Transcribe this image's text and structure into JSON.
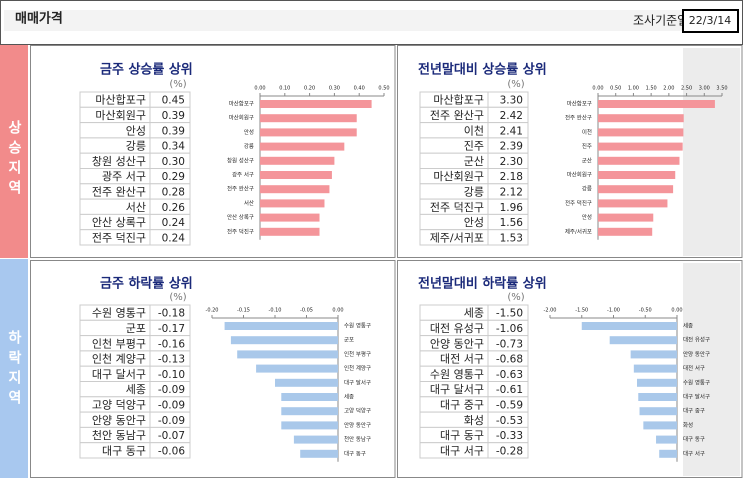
{
  "header": {
    "title": "매매가격",
    "date_label": "조사기준일",
    "date": "22/3/14"
  },
  "sections": [
    {
      "label": "상승지역",
      "panels": [
        {
          "title": "금주 상승률 상위",
          "unit": "(%)",
          "color": "#f4959a",
          "names": [
            "마산합포구",
            "마산회원구",
            "안성",
            "강릉",
            "창원 성산구",
            "광주 서구",
            "전주 완산구",
            "서산",
            "안산 상록구",
            "전주 덕진구"
          ],
          "values": [
            0.45,
            0.39,
            0.39,
            0.34,
            0.3,
            0.29,
            0.28,
            0.26,
            0.24,
            0.24
          ],
          "value_labels": [
            "0.45",
            "0.39",
            "0.39",
            "0.34",
            "0.30",
            "0.29",
            "0.28",
            "0.26",
            "0.24",
            "0.24"
          ],
          "xlim": [
            0,
            0.5
          ],
          "xticks": [
            {
              "value": 0,
              "label": "0.00"
            },
            {
              "value": 0.1,
              "label": "0.10"
            },
            {
              "value": 0.2,
              "label": "0.20"
            },
            {
              "value": 0.3,
              "label": "0.30"
            },
            {
              "value": 0.4,
              "label": "0.40"
            },
            {
              "value": 0.5,
              "label": "0.50"
            }
          ]
        },
        {
          "title": "전년말대비 상승률 상위",
          "unit": "(%)",
          "color": "#f4959a",
          "names": [
            "마산합포구",
            "전주 완산구",
            "이천",
            "진주",
            "군산",
            "마산회원구",
            "강릉",
            "전주 덕진구",
            "안성",
            "제주/서귀포"
          ],
          "values": [
            3.3,
            2.42,
            2.41,
            2.39,
            2.3,
            2.18,
            2.12,
            1.96,
            1.56,
            1.53
          ],
          "value_labels": [
            "3.30",
            "2.42",
            "2.41",
            "2.39",
            "2.30",
            "2.18",
            "2.12",
            "1.96",
            "1.56",
            "1.53"
          ],
          "xlim": [
            0,
            3.5
          ],
          "xticks": [
            {
              "value": 0,
              "label": "0.00"
            },
            {
              "value": 0.5,
              "label": "0.50"
            },
            {
              "value": 1,
              "label": "1.00"
            },
            {
              "value": 1.5,
              "label": "1.50"
            },
            {
              "value": 2,
              "label": "2.00"
            },
            {
              "value": 2.5,
              "label": "2.50"
            },
            {
              "value": 3,
              "label": "3.00"
            },
            {
              "value": 3.5,
              "label": "3.50"
            }
          ]
        }
      ]
    },
    {
      "label": "하락지역",
      "panels": [
        {
          "title": "금주 하락률 상위",
          "unit": "(%)",
          "color": "#a9c8ea",
          "names": [
            "수원 영통구",
            "군포",
            "인천 부평구",
            "인천 계양구",
            "대구 달서구",
            "세종",
            "고양 덕양구",
            "안양 동안구",
            "천안 동남구",
            "대구 동구"
          ],
          "values": [
            -0.18,
            -0.17,
            -0.16,
            -0.13,
            -0.1,
            -0.09,
            -0.09,
            -0.09,
            -0.07,
            -0.06
          ],
          "value_labels": [
            "-0.18",
            "-0.17",
            "-0.16",
            "-0.13",
            "-0.10",
            "-0.09",
            "-0.09",
            "-0.09",
            "-0.07",
            "-0.06"
          ],
          "xlim": [
            -0.2,
            0
          ],
          "xticks": [
            {
              "value": -0.2,
              "label": "-0.20"
            },
            {
              "value": -0.15,
              "label": "-0.15"
            },
            {
              "value": -0.1,
              "label": "-0.10"
            },
            {
              "value": -0.05,
              "label": "-0.05"
            },
            {
              "value": 0,
              "label": "0.00"
            }
          ]
        },
        {
          "title": "전년말대비 하락률 상위",
          "unit": "(%)",
          "color": "#a9c8ea",
          "names": [
            "세종",
            "대전 유성구",
            "안양 동안구",
            "대전 서구",
            "수원 영통구",
            "대구 달서구",
            "대구 중구",
            "화성",
            "대구 동구",
            "대구 서구"
          ],
          "values": [
            -1.5,
            -1.06,
            -0.73,
            -0.68,
            -0.63,
            -0.61,
            -0.59,
            -0.53,
            -0.33,
            -0.28
          ],
          "value_labels": [
            "-1.50",
            "-1.06",
            "-0.73",
            "-0.68",
            "-0.63",
            "-0.61",
            "-0.59",
            "-0.53",
            "-0.33",
            "-0.28"
          ],
          "xlim": [
            -2,
            0
          ],
          "xticks": [
            {
              "value": -2,
              "label": "-2.00"
            },
            {
              "value": -1.5,
              "label": "-1.50"
            },
            {
              "value": -1,
              "label": "-1.00"
            },
            {
              "value": -0.5,
              "label": "-0.50"
            },
            {
              "value": 0,
              "label": "0.00"
            }
          ]
        }
      ]
    }
  ]
}
